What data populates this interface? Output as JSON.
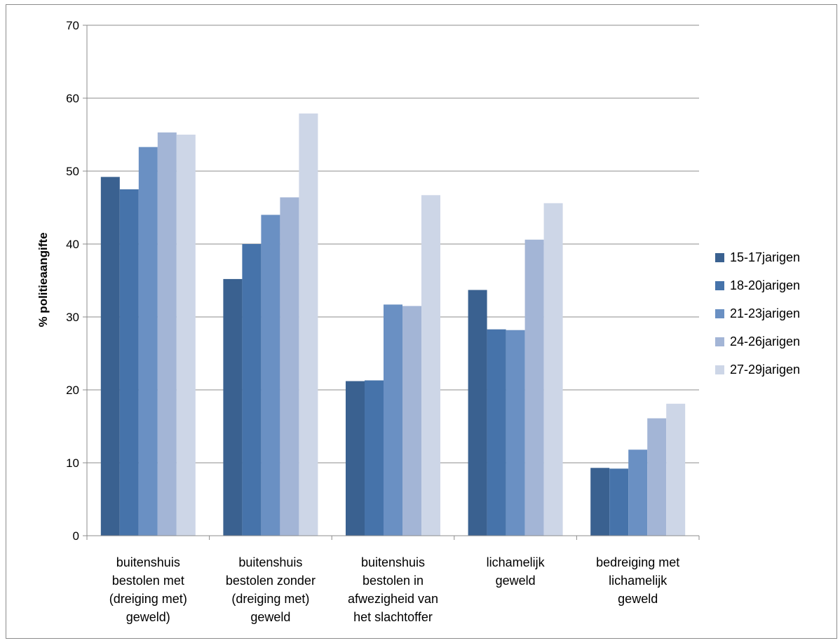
{
  "chart_data": {
    "type": "bar",
    "title": "",
    "xlabel": "",
    "ylabel": "% politieaangifte",
    "ylim": [
      0,
      70
    ],
    "yticks": [
      0,
      10,
      20,
      30,
      40,
      50,
      60,
      70
    ],
    "grid": true,
    "legend_position": "right",
    "categories": [
      [
        "buitenshuis",
        "bestolen met",
        "(dreiging met)",
        "geweld)"
      ],
      [
        "buitenshuis",
        "bestolen zonder",
        "(dreiging met)",
        "geweld"
      ],
      [
        "buitenshuis",
        "bestolen in",
        "afwezigheid van",
        "het slachtoffer"
      ],
      [
        "lichamelijk",
        "geweld"
      ],
      [
        "bedreiging met",
        "lichamelijk",
        "geweld"
      ]
    ],
    "series": [
      {
        "name": "15-17jarigen",
        "color": "#3a6190",
        "values": [
          49.2,
          35.2,
          21.2,
          33.7,
          9.3
        ]
      },
      {
        "name": "18-20jarigen",
        "color": "#4673aa",
        "values": [
          47.5,
          40.0,
          21.3,
          28.3,
          9.2
        ]
      },
      {
        "name": "21-23jarigen",
        "color": "#6a90c3",
        "values": [
          53.3,
          44.0,
          31.7,
          28.2,
          11.8
        ]
      },
      {
        "name": "24-26jarigen",
        "color": "#a3b5d6",
        "values": [
          55.3,
          46.4,
          31.5,
          40.6,
          16.1
        ]
      },
      {
        "name": "27-29jarigen",
        "color": "#cdd6e7",
        "values": [
          55.0,
          57.9,
          46.7,
          45.6,
          18.1
        ]
      }
    ]
  }
}
